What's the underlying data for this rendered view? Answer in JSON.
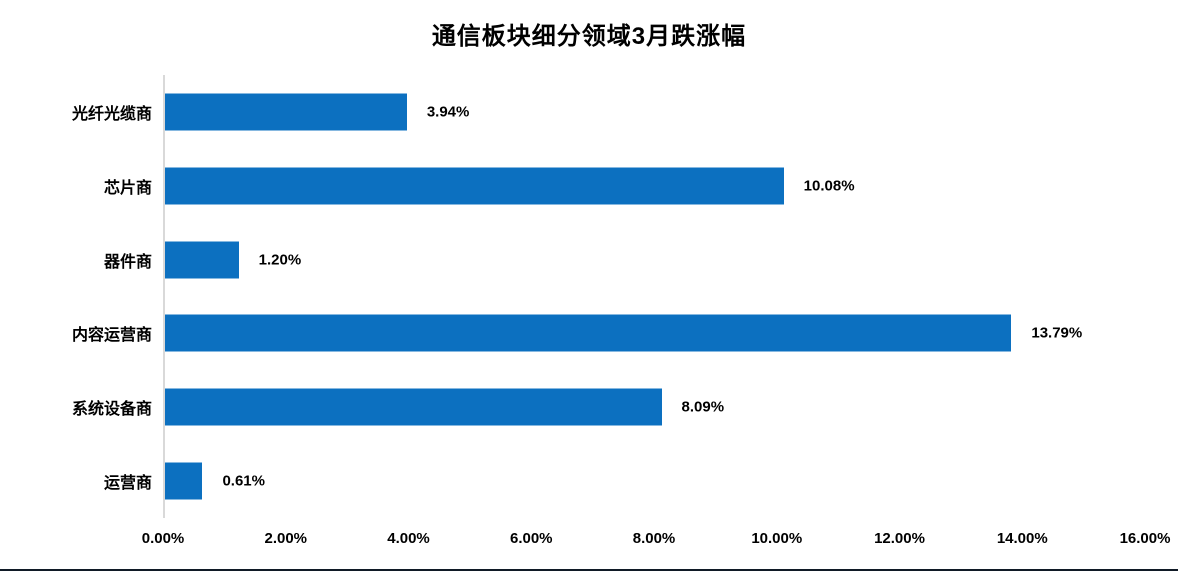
{
  "chart_data": {
    "type": "bar",
    "orientation": "horizontal",
    "title": "通信板块细分领域3月跌涨幅",
    "categories": [
      "光纤光缆商",
      "芯片商",
      "器件商",
      "内容运营商",
      "系统设备商",
      "运营商"
    ],
    "values": [
      3.94,
      10.08,
      1.2,
      13.79,
      8.09,
      0.61
    ],
    "value_labels": [
      "3.94%",
      "10.08%",
      "1.20%",
      "13.79%",
      "8.09%",
      "0.61%"
    ],
    "x_tick_labels": [
      "0.00%",
      "2.00%",
      "4.00%",
      "6.00%",
      "8.00%",
      "10.00%",
      "12.00%",
      "14.00%",
      "16.00%"
    ],
    "xlim": [
      0,
      16
    ],
    "xlabel": "",
    "ylabel": "",
    "grid": "off",
    "legend": "none",
    "data_labels": "outside-end"
  },
  "colors": {
    "bar": "#0c70c0",
    "axis_line": "#d9d9d9",
    "text": "#000000",
    "bottom_line": "#101a26",
    "background": "#ffffff"
  }
}
